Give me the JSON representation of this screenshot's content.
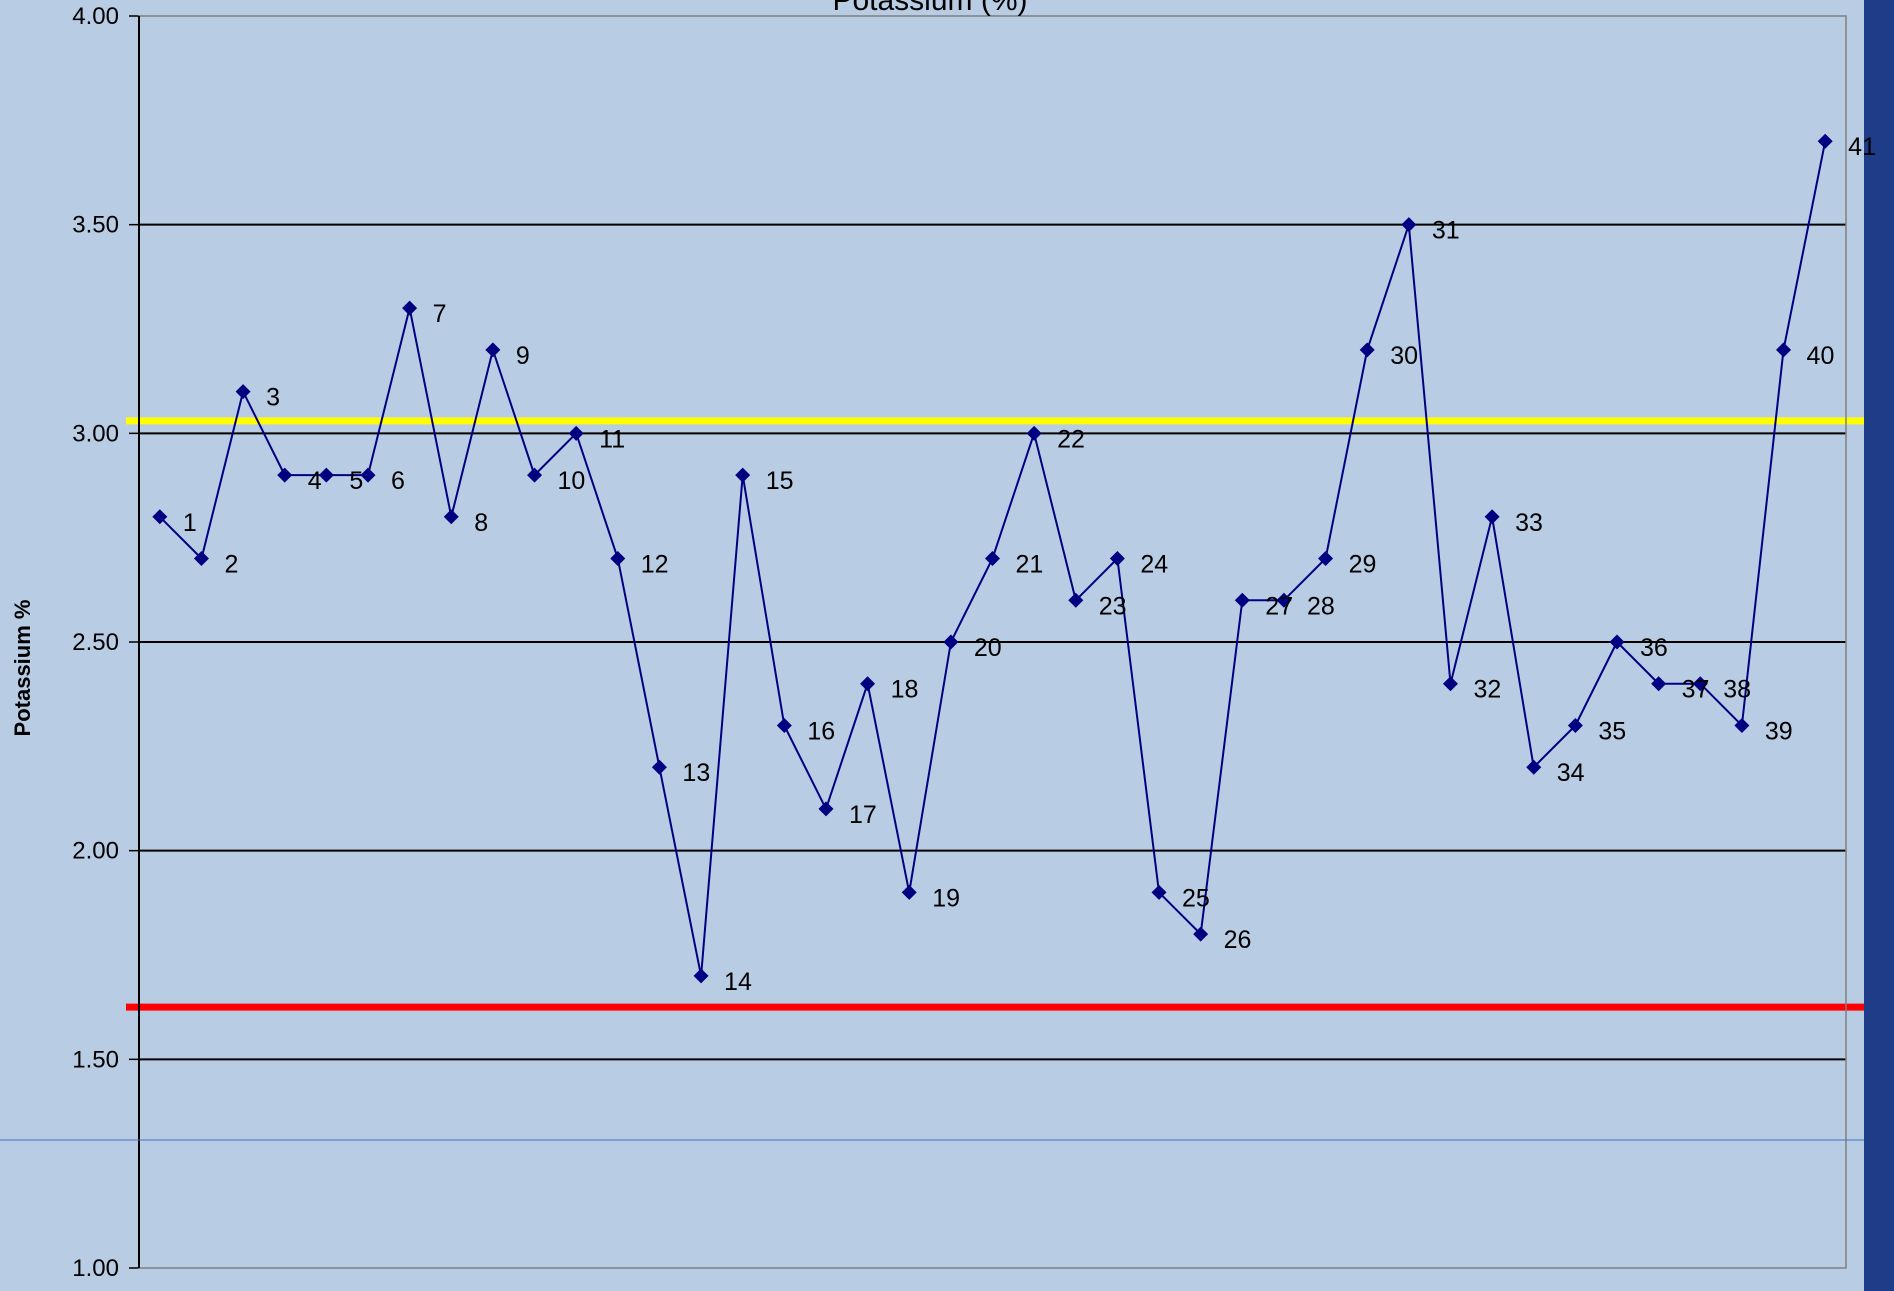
{
  "chart_data": {
    "type": "line",
    "title": "Potassium (%)",
    "ylabel": "Potassium %",
    "xlabel": "",
    "ylim": [
      1.0,
      4.0
    ],
    "yticks": [
      "4.00",
      "3.50",
      "3.00",
      "2.50",
      "2.00",
      "1.50",
      "1.00"
    ],
    "grid": true,
    "series": [
      {
        "marker": "diamond",
        "color": "#000080",
        "x": [
          1,
          2,
          3,
          4,
          5,
          6,
          7,
          8,
          9,
          10,
          11,
          12,
          13,
          14,
          15,
          16,
          17,
          18,
          19,
          20,
          21,
          22,
          23,
          24,
          25,
          26,
          27,
          28,
          29,
          30,
          31,
          32,
          33,
          34,
          35,
          36,
          37,
          38,
          39,
          40,
          41
        ],
        "labels": [
          "1",
          "2",
          "3",
          "4",
          "5",
          "6",
          "7",
          "8",
          "9",
          "10",
          "11",
          "12",
          "13",
          "14",
          "15",
          "16",
          "17",
          "18",
          "19",
          "20",
          "21",
          "22",
          "23",
          "24",
          "25",
          "26",
          "27",
          "28",
          "29",
          "30",
          "31",
          "32",
          "33",
          "34",
          "35",
          "36",
          "37",
          "38",
          "39",
          "40",
          "41"
        ],
        "values": [
          2.8,
          2.7,
          3.1,
          2.9,
          2.9,
          2.9,
          3.3,
          2.8,
          3.2,
          2.9,
          3.0,
          2.7,
          2.2,
          1.7,
          2.9,
          2.3,
          2.1,
          2.4,
          1.9,
          2.5,
          2.7,
          3.0,
          2.6,
          2.7,
          1.9,
          1.8,
          2.6,
          2.6,
          2.7,
          3.2,
          3.5,
          2.4,
          2.8,
          2.2,
          2.3,
          2.5,
          2.4,
          2.4,
          2.3,
          3.2,
          3.7
        ]
      }
    ],
    "reference_lines": [
      {
        "value": 3.03,
        "color": "#ffff00"
      },
      {
        "value": 1.625,
        "color": "#ff0000"
      }
    ],
    "colors": {
      "background": "#b8cce4",
      "right_strip": "#1f3c88",
      "grid": "#000000",
      "divider": "#4472c4"
    }
  }
}
